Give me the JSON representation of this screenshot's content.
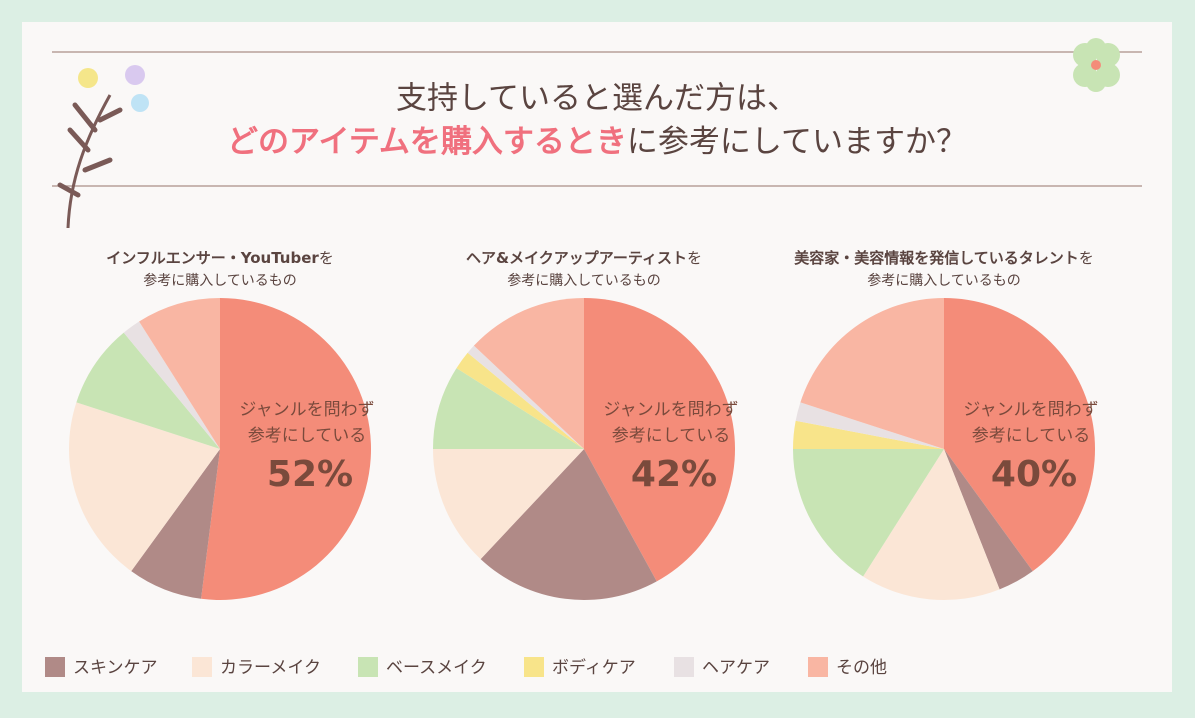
{
  "header": {
    "line1": "支持していると選んだ方は、",
    "line2_highlight": "どのアイテムを購入するとき",
    "line2_rest": "に参考にしていますか？"
  },
  "legend": {
    "categories": [
      "スキンケア",
      "カラーメイク",
      "ベースメイク",
      "ボディケア",
      "ヘアケア",
      "その他"
    ],
    "colors": [
      "#b08a87",
      "#fbe6d6",
      "#c8e4b4",
      "#f8e48a",
      "#e8e1e3",
      "#f9b6a3"
    ]
  },
  "chart_data": [
    {
      "type": "pie",
      "title": "インフルエンサー・YouTuber",
      "title_suffix": "を",
      "subtitle": "参考に購入しているもの",
      "main_label": [
        "ジャンルを問わず",
        "参考にしている"
      ],
      "main_color": "#f48c79",
      "main_value": 52,
      "main_value_label": "52%",
      "values": [
        8,
        20,
        9,
        0,
        2,
        9
      ]
    },
    {
      "type": "pie",
      "title": "ヘア&メイクアップアーティスト",
      "title_suffix": "を",
      "subtitle": "参考に購入しているもの",
      "main_label": [
        "ジャンルを問わず",
        "参考にしている"
      ],
      "main_color": "#f48c79",
      "main_value": 42,
      "main_value_label": "42%",
      "values": [
        20,
        13,
        9,
        2,
        1,
        13
      ]
    },
    {
      "type": "pie",
      "title": "美容家・美容情報を発信しているタレント",
      "title_suffix": "を",
      "subtitle": "参考に購入しているもの",
      "main_label": [
        "ジャンルを問わず",
        "参考にしている"
      ],
      "main_color": "#f48c79",
      "main_value": 40,
      "main_value_label": "40%",
      "values": [
        4,
        15,
        16,
        3,
        2,
        20
      ]
    }
  ]
}
